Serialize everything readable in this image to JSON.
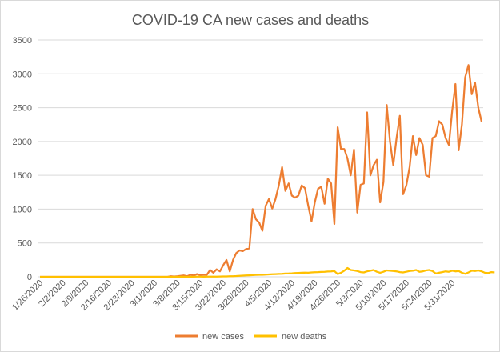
{
  "chart_data": {
    "type": "line",
    "title": "COVID-19 CA new cases and deaths",
    "xlabel": "",
    "ylabel": "",
    "ylim": [
      0,
      3500
    ],
    "yticks": [
      0,
      500,
      1000,
      1500,
      2000,
      2500,
      3000,
      3500
    ],
    "grid": "horizontal",
    "legend": "bottom",
    "x_start": "1/26/2020",
    "x_end": "6/3/2020",
    "x_tick_labels": [
      "1/26/2020",
      "2/2/2020",
      "2/9/2020",
      "2/16/2020",
      "2/23/2020",
      "3/1/2020",
      "3/8/2020",
      "3/15/2020",
      "3/22/2020",
      "3/29/2020",
      "4/5/2020",
      "4/12/2020",
      "4/19/2020",
      "4/26/2020",
      "5/3/2020",
      "5/10/2020",
      "5/17/2020",
      "5/24/2020",
      "5/31/2020"
    ],
    "series": [
      {
        "name": "new cases",
        "color": "#ED7D31",
        "values": [
          0,
          0,
          0,
          0,
          0,
          0,
          0,
          0,
          0,
          0,
          0,
          0,
          0,
          0,
          0,
          0,
          0,
          0,
          0,
          0,
          0,
          0,
          0,
          0,
          0,
          0,
          0,
          0,
          0,
          0,
          0,
          0,
          0,
          0,
          0,
          0,
          0,
          0,
          0,
          0,
          10,
          5,
          10,
          15,
          20,
          10,
          30,
          20,
          40,
          25,
          30,
          30,
          100,
          60,
          110,
          80,
          170,
          250,
          80,
          250,
          350,
          390,
          380,
          410,
          420,
          1000,
          850,
          800,
          680,
          1050,
          1150,
          1010,
          1150,
          1350,
          1620,
          1270,
          1380,
          1200,
          1170,
          1200,
          1350,
          1310,
          1050,
          820,
          1100,
          1300,
          1330,
          1080,
          1450,
          1380,
          780,
          2210,
          1890,
          1890,
          1750,
          1500,
          1880,
          950,
          1360,
          1380,
          2430,
          1500,
          1650,
          1730,
          1100,
          1400,
          2540,
          2000,
          1650,
          2050,
          2380,
          1220,
          1350,
          1620,
          2080,
          1800,
          2050,
          1950,
          1500,
          1480,
          2050,
          2080,
          2300,
          2250,
          2050,
          1950,
          2450,
          2850,
          1870,
          2250,
          2950,
          3130,
          2700,
          2870,
          2500,
          2290
        ]
      },
      {
        "name": "new deaths",
        "color": "#FFC000",
        "values": [
          0,
          0,
          0,
          0,
          0,
          0,
          0,
          0,
          0,
          0,
          0,
          0,
          0,
          0,
          0,
          0,
          0,
          0,
          0,
          0,
          0,
          0,
          0,
          0,
          0,
          0,
          0,
          0,
          0,
          0,
          0,
          0,
          0,
          0,
          0,
          0,
          0,
          0,
          0,
          0,
          0,
          0,
          0,
          1,
          1,
          0,
          1,
          1,
          2,
          2,
          1,
          2,
          3,
          2,
          4,
          5,
          6,
          6,
          8,
          10,
          12,
          15,
          18,
          20,
          22,
          25,
          28,
          30,
          30,
          32,
          35,
          38,
          40,
          42,
          45,
          48,
          50,
          52,
          55,
          58,
          60,
          62,
          60,
          65,
          68,
          70,
          72,
          75,
          78,
          80,
          85,
          40,
          60,
          90,
          130,
          100,
          95,
          85,
          70,
          65,
          80,
          90,
          100,
          75,
          60,
          75,
          95,
          90,
          85,
          80,
          70,
          65,
          75,
          85,
          90,
          100,
          75,
          80,
          95,
          100,
          85,
          50,
          60,
          70,
          80,
          75,
          90,
          80,
          85,
          60,
          45,
          65,
          90,
          85,
          95,
          80,
          60,
          55,
          70,
          65
        ]
      }
    ]
  }
}
